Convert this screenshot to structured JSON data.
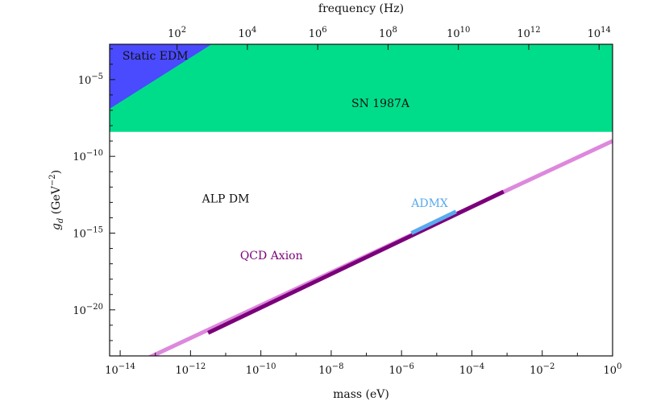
{
  "chart_data": {
    "type": "line",
    "title": "",
    "xlabel": "mass (eV)",
    "ylabel_main": "g",
    "ylabel_sub": "d",
    "ylabel_unit_pre": " (GeV",
    "ylabel_unit_exp": "−2",
    "ylabel_unit_post": ")",
    "top_xlabel": "frequency (Hz)",
    "x_scale": "log",
    "y_scale": "log",
    "xlim_log10": [
      -14.3,
      0
    ],
    "ylim_log10": [
      -23,
      -2.7
    ],
    "grid": false,
    "bottom_ticks": [
      {
        "base": "10",
        "exp": "−14",
        "log": -14
      },
      {
        "base": "10",
        "exp": "−12",
        "log": -12
      },
      {
        "base": "10",
        "exp": "−10",
        "log": -10
      },
      {
        "base": "10",
        "exp": "−8",
        "log": -8
      },
      {
        "base": "10",
        "exp": "−6",
        "log": -6
      },
      {
        "base": "10",
        "exp": "−4",
        "log": -4
      },
      {
        "base": "10",
        "exp": "−2",
        "log": -2
      },
      {
        "base": "10",
        "exp": "0",
        "log": 0
      }
    ],
    "left_ticks": [
      {
        "base": "10",
        "exp": "−5",
        "log": -5
      },
      {
        "base": "10",
        "exp": "−10",
        "log": -10
      },
      {
        "base": "10",
        "exp": "−15",
        "log": -15
      },
      {
        "base": "10",
        "exp": "−20",
        "log": -20
      }
    ],
    "top_ticks": [
      {
        "base": "10",
        "exp": "2",
        "log_hz": 2
      },
      {
        "base": "10",
        "exp": "4",
        "log_hz": 4
      },
      {
        "base": "10",
        "exp": "6",
        "log_hz": 6
      },
      {
        "base": "10",
        "exp": "8",
        "log_hz": 8
      },
      {
        "base": "10",
        "exp": "10",
        "log_hz": 10
      },
      {
        "base": "10",
        "exp": "12",
        "log_hz": 12
      },
      {
        "base": "10",
        "exp": "14",
        "log_hz": 14
      }
    ],
    "regions": [
      {
        "name": "SN 1987A",
        "color": "#00dd8a",
        "polygon_log10": [
          [
            -14.3,
            -8.4
          ],
          [
            0,
            -8.4
          ],
          [
            0,
            -2.7
          ],
          [
            -14.3,
            -2.7
          ]
        ]
      },
      {
        "name": "Static EDM",
        "color": "#4a4aff",
        "polygon_log10": [
          [
            -14.3,
            -6.9
          ],
          [
            -14.3,
            -2.7
          ],
          [
            -11.4,
            -2.7
          ]
        ]
      }
    ],
    "series": [
      {
        "name": "QCD Axion",
        "color": "#7a007a",
        "x_log10": [
          -11.5,
          -3.1
        ],
        "y_log10": [
          -21.5,
          -12.3
        ]
      },
      {
        "name": "ADMX",
        "color": "#5aaaee",
        "x_log10": [
          -5.72,
          -4.45
        ],
        "y_log10": [
          -15.0,
          -13.6
        ]
      }
    ],
    "extension": {
      "color": "#dd88dd",
      "x_log10": [
        -14.3,
        0
      ],
      "y_log10": [
        -24.3,
        -9.0
      ]
    },
    "annotations": [
      {
        "text": "Static EDM",
        "color": "#111111",
        "at_log10": [
          -13.0,
          -3.7
        ]
      },
      {
        "text": "SN 1987A",
        "color": "#111111",
        "at_log10": [
          -6.6,
          -6.8
        ]
      },
      {
        "text": "ALP DM",
        "color": "#111111",
        "at_log10": [
          -11.0,
          -13.0
        ]
      },
      {
        "text": "ADMX",
        "color": "#5aaaee",
        "at_log10": [
          -5.2,
          -13.3
        ]
      },
      {
        "text": "QCD Axion",
        "color": "#7a007a",
        "at_log10": [
          -9.7,
          -16.7
        ]
      }
    ]
  }
}
